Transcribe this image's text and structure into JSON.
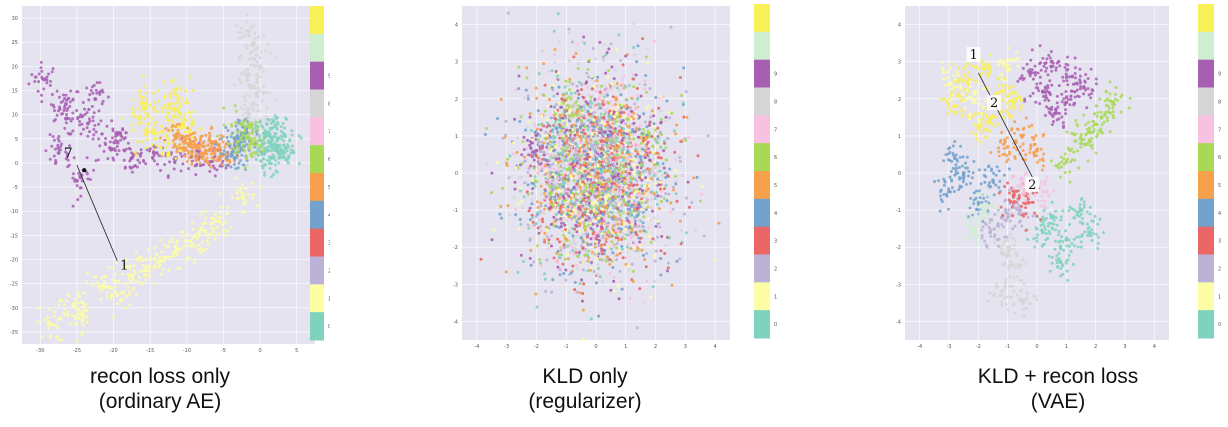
{
  "colors": {
    "plot_background": "#e5e3f0",
    "classes": [
      "#7fd2bd",
      "#fdfda6",
      "#bcb1d6",
      "#ea6766",
      "#73a2cc",
      "#f69f4d",
      "#a8d956",
      "#f7c2e0",
      "#d6d6d6",
      "#a85fb1",
      "#cfeed0",
      "#f9ef56"
    ]
  },
  "colorbar_labels": [
    "0",
    "1",
    "2",
    "3",
    "4",
    "5",
    "6",
    "7",
    "8",
    "9"
  ],
  "panels": [
    {
      "caption_line1": "recon loss only",
      "caption_line2": "(ordinary AE)",
      "chart_data": {
        "type": "scatter",
        "title": "",
        "xlabel": "",
        "ylabel": "",
        "xlim": [
          -32,
          8
        ],
        "ylim": [
          -37,
          32
        ],
        "xticks": [
          "-30",
          "-25",
          "-20",
          "-15",
          "-10",
          "-5",
          "0",
          "5"
        ],
        "yticks": [
          "-35",
          "-30",
          "-25",
          "-20",
          "-15",
          "-10",
          "-5",
          "0",
          "5",
          "10",
          "15",
          "20",
          "25",
          "30"
        ],
        "grid": true,
        "colorbar": "right",
        "annotations": [
          "7",
          "1"
        ],
        "series": [
          {
            "class": 9,
            "points": [
              [
                -29,
                17
              ],
              [
                -26,
                12
              ],
              [
                -23,
                8
              ],
              [
                -27,
                2
              ],
              [
                -20,
                3
              ],
              [
                -17,
                1
              ],
              [
                -14,
                2
              ],
              [
                -11,
                1
              ],
              [
                -8,
                1
              ],
              [
                -5,
                1
              ],
              [
                -24,
                -3
              ],
              [
                -26,
                9
              ],
              [
                -22,
                13
              ],
              [
                -19,
                6
              ]
            ]
          },
          {
            "class": 11,
            "points": [
              [
                -15,
                12
              ],
              [
                -12,
                10
              ],
              [
                -10,
                8
              ],
              [
                -14,
                6
              ],
              [
                -12,
                4
              ],
              [
                -9,
                6
              ],
              [
                -16,
                9
              ],
              [
                -11,
                14
              ]
            ]
          },
          {
            "class": 5,
            "points": [
              [
                -11,
                5
              ],
              [
                -9,
                4
              ],
              [
                -8,
                3
              ],
              [
                -6,
                4
              ],
              [
                -7,
                2
              ],
              [
                -5,
                3
              ],
              [
                -4,
                2
              ],
              [
                -10,
                3
              ]
            ]
          },
          {
            "class": 1,
            "points": [
              [
                -28,
                -33
              ],
              [
                -25,
                -29
              ],
              [
                -21,
                -25
              ],
              [
                -17,
                -23
              ],
              [
                -13,
                -20
              ],
              [
                -9,
                -16
              ],
              [
                -5,
                -12
              ],
              [
                -2,
                -7
              ],
              [
                -24,
                -31
              ],
              [
                -19,
                -27
              ],
              [
                -15,
                -22
              ],
              [
                -11,
                -18
              ],
              [
                -7,
                -14
              ]
            ]
          },
          {
            "class": 8,
            "points": [
              [
                -1,
                26
              ],
              [
                0,
                22
              ],
              [
                -1,
                18
              ],
              [
                0,
                14
              ],
              [
                -1,
                10
              ],
              [
                0,
                6
              ],
              [
                0,
                2
              ]
            ]
          },
          {
            "class": 0,
            "points": [
              [
                1,
                6
              ],
              [
                2,
                4
              ],
              [
                3,
                2
              ],
              [
                2,
                1
              ],
              [
                3,
                5
              ],
              [
                4,
                3
              ],
              [
                1,
                2
              ],
              [
                2,
                7
              ]
            ]
          },
          {
            "class": 4,
            "points": [
              [
                -3,
                5
              ],
              [
                -2,
                3
              ],
              [
                -3,
                1
              ],
              [
                -2,
                6
              ]
            ]
          },
          {
            "class": 6,
            "points": [
              [
                -2,
                8
              ],
              [
                -1,
                5
              ],
              [
                -1,
                3
              ]
            ]
          }
        ]
      }
    },
    {
      "caption_line1": "KLD only",
      "caption_line2": "(regularizer)",
      "chart_data": {
        "type": "scatter",
        "title": "",
        "xlabel": "",
        "ylabel": "",
        "xlim": [
          -4.5,
          4.5
        ],
        "ylim": [
          -4.5,
          4.5
        ],
        "xticks": [
          "-4",
          "-3",
          "-2",
          "-1",
          "0",
          "1",
          "2",
          "3",
          "4"
        ],
        "yticks": [
          "-4",
          "-3",
          "-2",
          "-1",
          "0",
          "1",
          "2",
          "3",
          "4"
        ],
        "grid": true,
        "colorbar": "right",
        "distribution": "standard normal, all classes mixed",
        "series": [
          {
            "class": 0,
            "points": [
              [
                0,
                0
              ],
              [
                0.5,
                1
              ],
              [
                -1,
                0.5
              ]
            ]
          },
          {
            "class": 1,
            "points": [
              [
                0.3,
                -0.8
              ],
              [
                -0.6,
                -1.2
              ],
              [
                1.1,
                0.2
              ]
            ]
          },
          {
            "class": 2,
            "points": [
              [
                -0.2,
                1.4
              ],
              [
                0.9,
                -0.4
              ],
              [
                -1.3,
                -0.3
              ]
            ]
          },
          {
            "class": 3,
            "points": [
              [
                0.6,
                0.7
              ],
              [
                -0.8,
                0.9
              ],
              [
                0.2,
                -1.5
              ]
            ]
          },
          {
            "class": 4,
            "points": [
              [
                -1.1,
                1.2
              ],
              [
                1.3,
                -1
              ],
              [
                0,
                0.4
              ]
            ]
          },
          {
            "class": 5,
            "points": [
              [
                0.8,
                1.6
              ],
              [
                -1.5,
                -0.8
              ],
              [
                0.4,
                -0.2
              ]
            ]
          },
          {
            "class": 6,
            "points": [
              [
                -0.4,
                -0.5
              ],
              [
                1.6,
                0.9
              ],
              [
                -0.9,
                1.8
              ]
            ]
          },
          {
            "class": 7,
            "points": [
              [
                0.1,
                2
              ],
              [
                -1.7,
                0.2
              ],
              [
                1.2,
                -1.7
              ]
            ]
          },
          {
            "class": 8,
            "points": [
              [
                -0.7,
                -1.9
              ],
              [
                0.7,
                0.3
              ],
              [
                1.9,
                0.1
              ]
            ]
          },
          {
            "class": 9,
            "points": [
              [
                -2,
                0.6
              ],
              [
                0.3,
                1.1
              ],
              [
                -0.3,
                -1
              ]
            ]
          }
        ]
      }
    },
    {
      "caption_line1": "KLD + recon loss",
      "caption_line2": "(VAE)",
      "chart_data": {
        "type": "scatter",
        "title": "",
        "xlabel": "",
        "ylabel": "",
        "xlim": [
          -4.5,
          4.5
        ],
        "ylim": [
          -4.5,
          4.5
        ],
        "xticks": [
          "-4",
          "-3",
          "-2",
          "-1",
          "0",
          "1",
          "2",
          "3",
          "4"
        ],
        "yticks": [
          "-4",
          "-3",
          "-2",
          "-1",
          "0",
          "1",
          "2",
          "3",
          "4"
        ],
        "grid": true,
        "colorbar": "right",
        "annotations": [
          "1",
          "2",
          "2"
        ],
        "series": [
          {
            "class": 11,
            "points": [
              [
                -2.5,
                2.5
              ],
              [
                -1.8,
                2.8
              ],
              [
                -1.2,
                2.2
              ],
              [
                -2.8,
                1.8
              ],
              [
                -1.5,
                1.5
              ],
              [
                -0.8,
                1.9
              ],
              [
                -2,
                1.2
              ]
            ]
          },
          {
            "class": 9,
            "points": [
              [
                0.5,
                3
              ],
              [
                1.2,
                2.6
              ],
              [
                0.2,
                2.2
              ],
              [
                1,
                1.9
              ],
              [
                -0.2,
                2.7
              ],
              [
                1.6,
                2.3
              ],
              [
                0.6,
                1.6
              ]
            ]
          },
          {
            "class": 6,
            "points": [
              [
                1.5,
                0.8
              ],
              [
                2.2,
                1.5
              ],
              [
                1,
                0.3
              ],
              [
                2.6,
                1.9
              ],
              [
                1.8,
                1.1
              ]
            ]
          },
          {
            "class": 5,
            "points": [
              [
                -0.5,
                1
              ],
              [
                0,
                0.6
              ],
              [
                -1,
                0.7
              ]
            ]
          },
          {
            "class": 4,
            "points": [
              [
                -2.5,
                0
              ],
              [
                -3,
                -0.5
              ],
              [
                -2,
                -0.8
              ],
              [
                -1.5,
                -0.2
              ],
              [
                -2.8,
                0.4
              ]
            ]
          },
          {
            "class": 0,
            "points": [
              [
                0.5,
                -1.2
              ],
              [
                1,
                -1.8
              ],
              [
                1.5,
                -1
              ],
              [
                0.8,
                -2.4
              ],
              [
                1.8,
                -1.6
              ],
              [
                0.2,
                -1.6
              ]
            ]
          },
          {
            "class": 8,
            "points": [
              [
                -0.8,
                -2.5
              ],
              [
                -1.2,
                -3.2
              ],
              [
                -0.5,
                -3.5
              ],
              [
                -1,
                -2
              ]
            ]
          },
          {
            "class": 2,
            "points": [
              [
                -1.6,
                -1.6
              ],
              [
                -1.2,
                -1.2
              ],
              [
                -0.6,
                -1.1
              ]
            ]
          },
          {
            "class": 1,
            "points": [
              [
                -3,
                2.4
              ],
              [
                -2.2,
                2
              ],
              [
                -1,
                2.9
              ]
            ]
          },
          {
            "class": 3,
            "points": [
              [
                -0.8,
                -0.6
              ],
              [
                -0.3,
                -0.8
              ]
            ]
          },
          {
            "class": 10,
            "points": [
              [
                -1.8,
                -1
              ],
              [
                -2.2,
                -1.5
              ]
            ]
          },
          {
            "class": 7,
            "points": [
              [
                -0.4,
                -0.3
              ],
              [
                0.2,
                -0.5
              ]
            ]
          }
        ]
      }
    }
  ]
}
